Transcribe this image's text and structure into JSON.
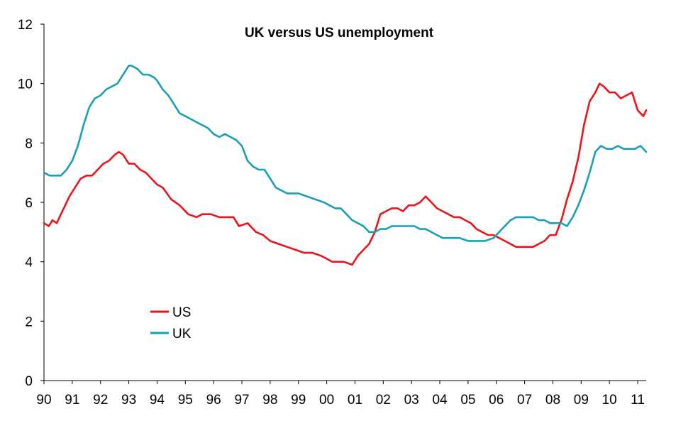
{
  "chart_data": {
    "type": "line",
    "title": "UK versus US unemployment",
    "xlabel": "",
    "ylabel": "",
    "ylim": [
      0,
      12
    ],
    "yticks": [
      "0",
      "2",
      "4",
      "6",
      "8",
      "10",
      "12"
    ],
    "xlim": [
      1990,
      2011.3
    ],
    "categories": [
      "90",
      "91",
      "92",
      "93",
      "94",
      "95",
      "96",
      "97",
      "98",
      "99",
      "00",
      "01",
      "02",
      "03",
      "04",
      "05",
      "06",
      "07",
      "08",
      "09",
      "10",
      "11"
    ],
    "grid": false,
    "legend": "lower-left",
    "series": [
      {
        "name": "US",
        "color": "#e8151b",
        "x": [
          1990.0,
          1990.17,
          1990.3,
          1990.45,
          1990.6,
          1990.75,
          1990.9,
          1991.1,
          1991.3,
          1991.5,
          1991.7,
          1991.9,
          1992.1,
          1992.3,
          1992.5,
          1992.65,
          1992.8,
          1993.0,
          1993.2,
          1993.4,
          1993.6,
          1993.8,
          1994.0,
          1994.2,
          1994.5,
          1994.8,
          1995.1,
          1995.4,
          1995.6,
          1995.9,
          1996.2,
          1996.5,
          1996.7,
          1996.9,
          1997.2,
          1997.5,
          1997.75,
          1998.0,
          1998.3,
          1998.6,
          1998.9,
          1999.2,
          1999.5,
          1999.8,
          2000.0,
          2000.2,
          2000.4,
          2000.6,
          2000.9,
          2001.1,
          2001.3,
          2001.5,
          2001.7,
          2001.9,
          2002.1,
          2002.3,
          2002.5,
          2002.7,
          2002.9,
          2003.1,
          2003.3,
          2003.5,
          2003.7,
          2003.9,
          2004.1,
          2004.3,
          2004.5,
          2004.7,
          2004.9,
          2005.1,
          2005.3,
          2005.5,
          2005.7,
          2005.9,
          2006.1,
          2006.3,
          2006.5,
          2006.7,
          2006.9,
          2007.1,
          2007.3,
          2007.5,
          2007.7,
          2007.9,
          2008.1,
          2008.3,
          2008.5,
          2008.7,
          2008.9,
          2009.1,
          2009.3,
          2009.5,
          2009.65,
          2009.8,
          2010.0,
          2010.2,
          2010.4,
          2010.6,
          2010.8,
          2011.0,
          2011.2,
          2011.3
        ],
        "values": [
          5.3,
          5.2,
          5.4,
          5.3,
          5.6,
          5.9,
          6.2,
          6.5,
          6.8,
          6.9,
          6.9,
          7.1,
          7.3,
          7.4,
          7.6,
          7.7,
          7.6,
          7.3,
          7.3,
          7.1,
          7.0,
          6.8,
          6.6,
          6.5,
          6.1,
          5.9,
          5.6,
          5.5,
          5.6,
          5.6,
          5.5,
          5.5,
          5.5,
          5.2,
          5.3,
          5.0,
          4.9,
          4.7,
          4.6,
          4.5,
          4.4,
          4.3,
          4.3,
          4.2,
          4.1,
          4.0,
          4.0,
          4.0,
          3.9,
          4.2,
          4.4,
          4.6,
          5.0,
          5.6,
          5.7,
          5.8,
          5.8,
          5.7,
          5.9,
          5.9,
          6.0,
          6.2,
          6.0,
          5.8,
          5.7,
          5.6,
          5.5,
          5.5,
          5.4,
          5.3,
          5.1,
          5.0,
          4.9,
          4.9,
          4.8,
          4.7,
          4.6,
          4.5,
          4.5,
          4.5,
          4.5,
          4.6,
          4.7,
          4.9,
          4.9,
          5.4,
          6.1,
          6.7,
          7.5,
          8.6,
          9.4,
          9.7,
          10.0,
          9.9,
          9.7,
          9.7,
          9.5,
          9.6,
          9.7,
          9.1,
          8.9,
          9.1
        ]
      },
      {
        "name": "UK",
        "color": "#1aa0b4",
        "x": [
          1990.0,
          1990.2,
          1990.4,
          1990.6,
          1990.8,
          1991.0,
          1991.2,
          1991.4,
          1991.6,
          1991.8,
          1992.0,
          1992.2,
          1992.4,
          1992.6,
          1992.8,
          1993.0,
          1993.1,
          1993.3,
          1993.5,
          1993.7,
          1993.9,
          1994.0,
          1994.2,
          1994.4,
          1994.6,
          1994.8,
          1995.0,
          1995.2,
          1995.4,
          1995.6,
          1995.8,
          1996.0,
          1996.2,
          1996.4,
          1996.6,
          1996.8,
          1997.0,
          1997.2,
          1997.4,
          1997.6,
          1997.8,
          1998.0,
          1998.2,
          1998.4,
          1998.6,
          1998.8,
          1999.0,
          1999.3,
          1999.6,
          1999.9,
          2000.1,
          2000.3,
          2000.5,
          2000.7,
          2000.9,
          2001.1,
          2001.3,
          2001.5,
          2001.7,
          2001.9,
          2002.1,
          2002.3,
          2002.5,
          2002.7,
          2002.9,
          2003.1,
          2003.3,
          2003.5,
          2003.7,
          2003.9,
          2004.1,
          2004.4,
          2004.7,
          2005.0,
          2005.3,
          2005.6,
          2005.9,
          2006.1,
          2006.3,
          2006.5,
          2006.7,
          2006.9,
          2007.1,
          2007.3,
          2007.5,
          2007.7,
          2007.9,
          2008.1,
          2008.3,
          2008.5,
          2008.7,
          2008.9,
          2009.1,
          2009.3,
          2009.5,
          2009.7,
          2009.9,
          2010.1,
          2010.3,
          2010.5,
          2010.7,
          2010.9,
          2011.1,
          2011.3
        ],
        "values": [
          7.0,
          6.9,
          6.9,
          6.9,
          7.1,
          7.4,
          7.9,
          8.6,
          9.2,
          9.5,
          9.6,
          9.8,
          9.9,
          10.0,
          10.3,
          10.6,
          10.6,
          10.5,
          10.3,
          10.3,
          10.2,
          10.1,
          9.8,
          9.6,
          9.3,
          9.0,
          8.9,
          8.8,
          8.7,
          8.6,
          8.5,
          8.3,
          8.2,
          8.3,
          8.2,
          8.1,
          7.9,
          7.4,
          7.2,
          7.1,
          7.1,
          6.8,
          6.5,
          6.4,
          6.3,
          6.3,
          6.3,
          6.2,
          6.1,
          6.0,
          5.9,
          5.8,
          5.8,
          5.6,
          5.4,
          5.3,
          5.2,
          5.0,
          5.0,
          5.1,
          5.1,
          5.2,
          5.2,
          5.2,
          5.2,
          5.2,
          5.1,
          5.1,
          5.0,
          4.9,
          4.8,
          4.8,
          4.8,
          4.7,
          4.7,
          4.7,
          4.8,
          5.0,
          5.2,
          5.4,
          5.5,
          5.5,
          5.5,
          5.5,
          5.4,
          5.4,
          5.3,
          5.3,
          5.3,
          5.2,
          5.5,
          5.9,
          6.4,
          7.0,
          7.7,
          7.9,
          7.8,
          7.8,
          7.9,
          7.8,
          7.8,
          7.8,
          7.9,
          7.7
        ]
      }
    ]
  }
}
